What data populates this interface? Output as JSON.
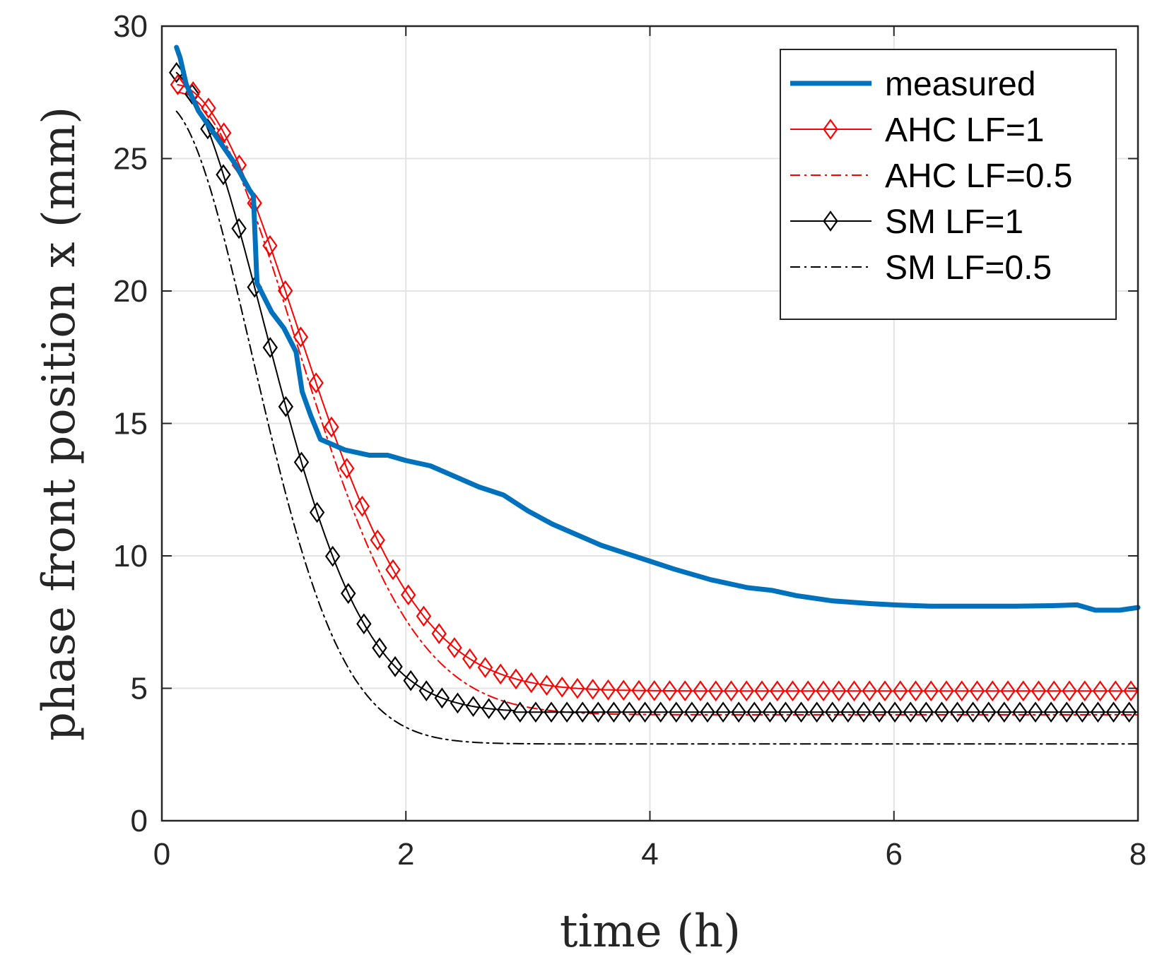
{
  "chart_data": {
    "type": "line",
    "title": "",
    "xlabel": "time (h)",
    "ylabel": "phase front position x (mm)",
    "xlim": [
      0,
      8
    ],
    "ylim": [
      0,
      30
    ],
    "xticks": [
      0,
      2,
      4,
      6,
      8
    ],
    "yticks": [
      0,
      5,
      10,
      15,
      20,
      25,
      30
    ],
    "grid": true,
    "legend_position": "top-right",
    "series": [
      {
        "name": "measured",
        "color": "#0072BD",
        "style": "solid-thick",
        "marker": "none",
        "points": [
          [
            0.12,
            29.2
          ],
          [
            0.15,
            28.8
          ],
          [
            0.2,
            27.8
          ],
          [
            0.3,
            26.8
          ],
          [
            0.45,
            25.8
          ],
          [
            0.6,
            24.8
          ],
          [
            0.72,
            23.8
          ],
          [
            0.75,
            23.6
          ],
          [
            0.78,
            20.3
          ],
          [
            0.9,
            19.2
          ],
          [
            1.0,
            18.6
          ],
          [
            1.1,
            17.7
          ],
          [
            1.15,
            16.2
          ],
          [
            1.22,
            15.3
          ],
          [
            1.3,
            14.4
          ],
          [
            1.5,
            14.0
          ],
          [
            1.7,
            13.8
          ],
          [
            1.85,
            13.8
          ],
          [
            2.0,
            13.6
          ],
          [
            2.2,
            13.4
          ],
          [
            2.4,
            13.0
          ],
          [
            2.6,
            12.6
          ],
          [
            2.8,
            12.3
          ],
          [
            3.0,
            11.7
          ],
          [
            3.2,
            11.2
          ],
          [
            3.4,
            10.8
          ],
          [
            3.6,
            10.4
          ],
          [
            3.8,
            10.1
          ],
          [
            4.0,
            9.8
          ],
          [
            4.2,
            9.5
          ],
          [
            4.5,
            9.1
          ],
          [
            4.8,
            8.8
          ],
          [
            5.0,
            8.7
          ],
          [
            5.2,
            8.5
          ],
          [
            5.5,
            8.3
          ],
          [
            5.8,
            8.2
          ],
          [
            6.0,
            8.15
          ],
          [
            6.3,
            8.1
          ],
          [
            6.6,
            8.1
          ],
          [
            7.0,
            8.1
          ],
          [
            7.3,
            8.12
          ],
          [
            7.5,
            8.15
          ],
          [
            7.65,
            7.95
          ],
          [
            7.85,
            7.95
          ],
          [
            8.0,
            8.05
          ]
        ]
      },
      {
        "name": "AHC LF=1",
        "color": "#FF0000",
        "style": "solid",
        "marker": "diamond",
        "model": {
          "x0": 27.8,
          "x_inf": 4.9,
          "tau": 1.0,
          "delay": 0.1,
          "t_start": 0.13,
          "t_end": 8.0,
          "marker_step": 0.126
        }
      },
      {
        "name": "AHC LF=0.5",
        "color": "#FF0000",
        "style": "dashdot",
        "marker": "none",
        "model": {
          "x0": 27.5,
          "x_inf": 4.0,
          "tau": 0.97,
          "delay": 0.12,
          "t_start": 0.13,
          "t_end": 8.0
        }
      },
      {
        "name": "SM LF=1",
        "color": "#000000",
        "style": "solid",
        "marker": "diamond",
        "model": {
          "x0": 28.5,
          "x_inf": 4.1,
          "tau": 0.83,
          "delay": 0.0,
          "t_start": 0.12,
          "t_end": 8.0,
          "marker_step": 0.128,
          "quantize_after": 2.9,
          "quantum": 0.42
        }
      },
      {
        "name": "SM LF=0.5",
        "color": "#000000",
        "style": "dashdot",
        "marker": "none",
        "model": {
          "x0": 27.1,
          "x_inf": 2.9,
          "tau": 0.74,
          "delay": 0.0,
          "t_start": 0.12,
          "t_end": 8.0
        }
      }
    ]
  }
}
